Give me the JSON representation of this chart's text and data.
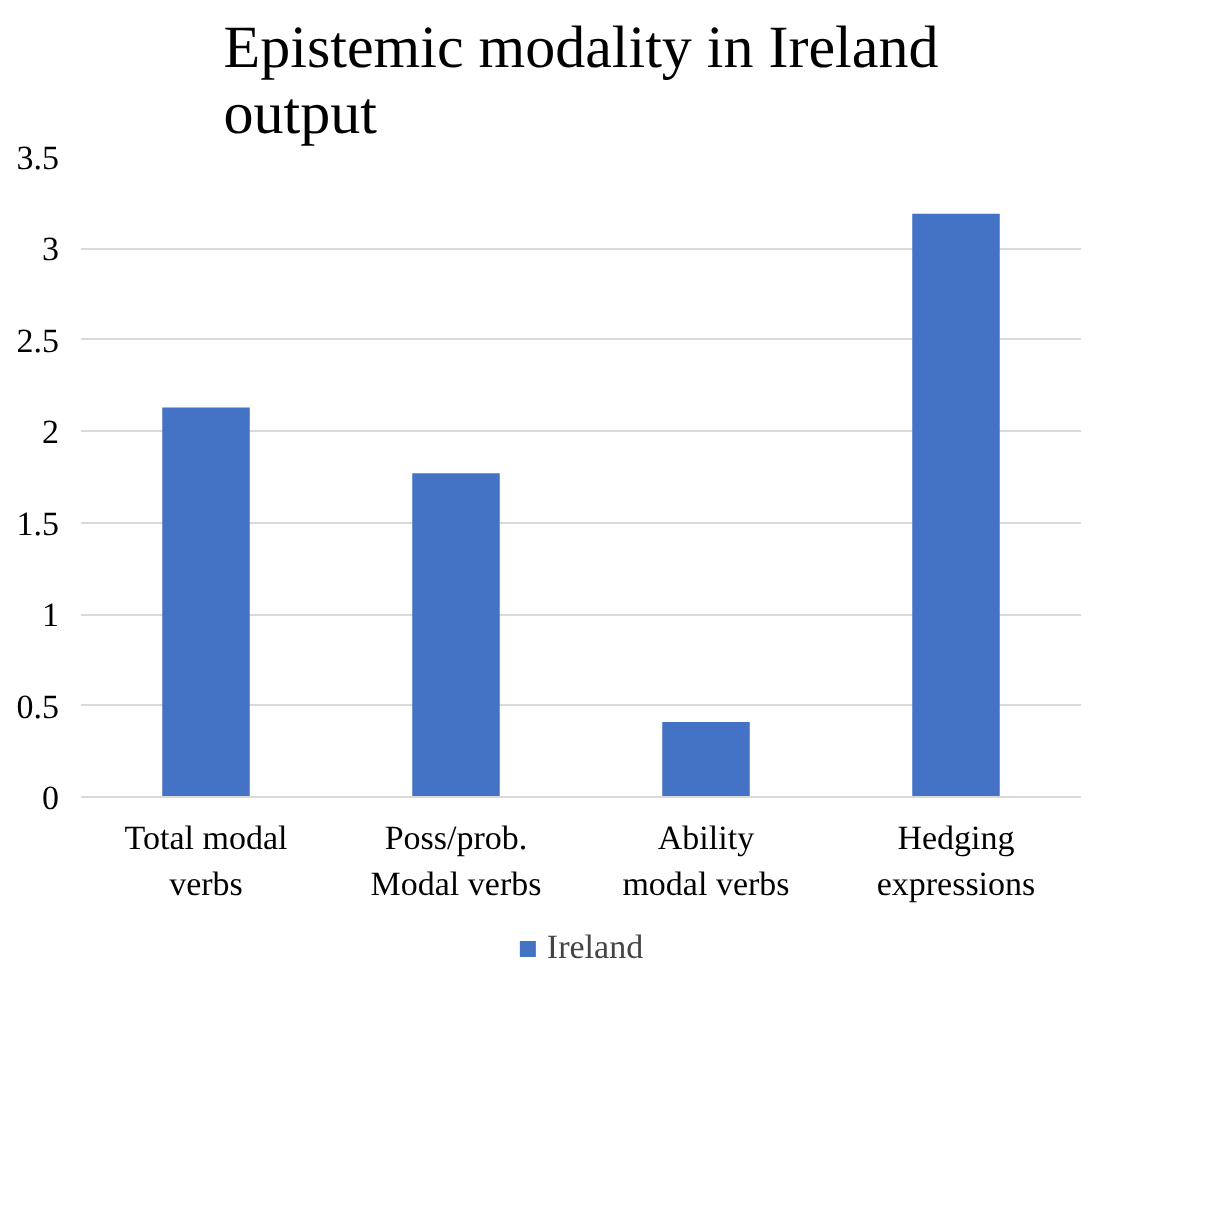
{
  "chart_data": {
    "type": "bar",
    "title": "Epistemic modality in Ireland output",
    "categories": [
      "Total modal\nverbs",
      "Poss/prob.\nModal verbs",
      "Ability\nmodal verbs",
      "Hedging\nexpressions"
    ],
    "series": [
      {
        "name": "Ireland",
        "color": "#4472c4",
        "values": [
          2.13,
          1.77,
          0.41,
          3.19
        ]
      }
    ],
    "ylim": [
      0,
      3.5
    ],
    "yticks": [
      0,
      0.5,
      1,
      1.5,
      2,
      2.5,
      3,
      3.5
    ],
    "grid": "y",
    "legend": "bottom"
  }
}
